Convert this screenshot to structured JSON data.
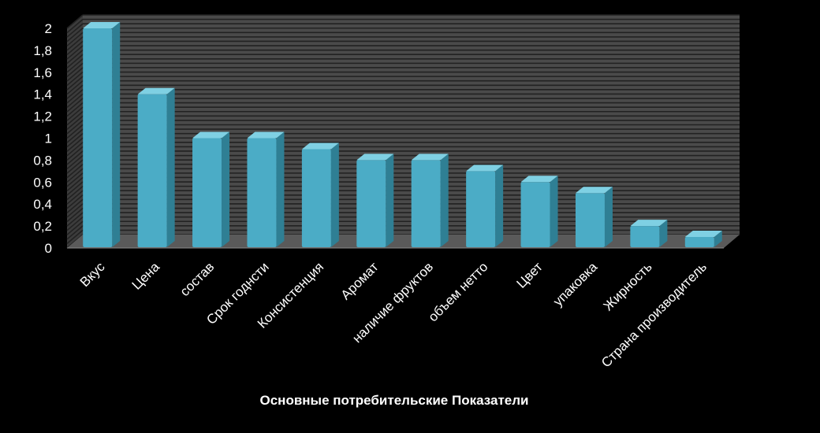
{
  "chart_data": {
    "type": "bar",
    "title": "",
    "xlabel": "Основные потребительские Показатели",
    "ylabel": "",
    "ylim": [
      0,
      2
    ],
    "yticks": [
      "0",
      "0,2",
      "0,4",
      "0,6",
      "0,8",
      "1",
      "1,2",
      "1,4",
      "1,6",
      "1,8",
      "2"
    ],
    "categories": [
      "Вкус",
      "Цена",
      "состав",
      "Срок годнсти",
      "Консистенция",
      "Аромат",
      "наличие фруктов",
      "объем нетто",
      "Цвет",
      "упаковка",
      "Жирность",
      "Страна производитель"
    ],
    "values": [
      2.0,
      1.4,
      1.0,
      1.0,
      0.9,
      0.8,
      0.8,
      0.7,
      0.6,
      0.5,
      0.2,
      0.1
    ],
    "grid": true,
    "style": "3d",
    "colors": {
      "background": "#000000",
      "wall": "#4a4a4a",
      "gridline": "#222222",
      "bar_front": "#4bacc6",
      "bar_side": "#2f7f94",
      "bar_top": "#7fd0e3",
      "text": "#ffffff"
    }
  }
}
